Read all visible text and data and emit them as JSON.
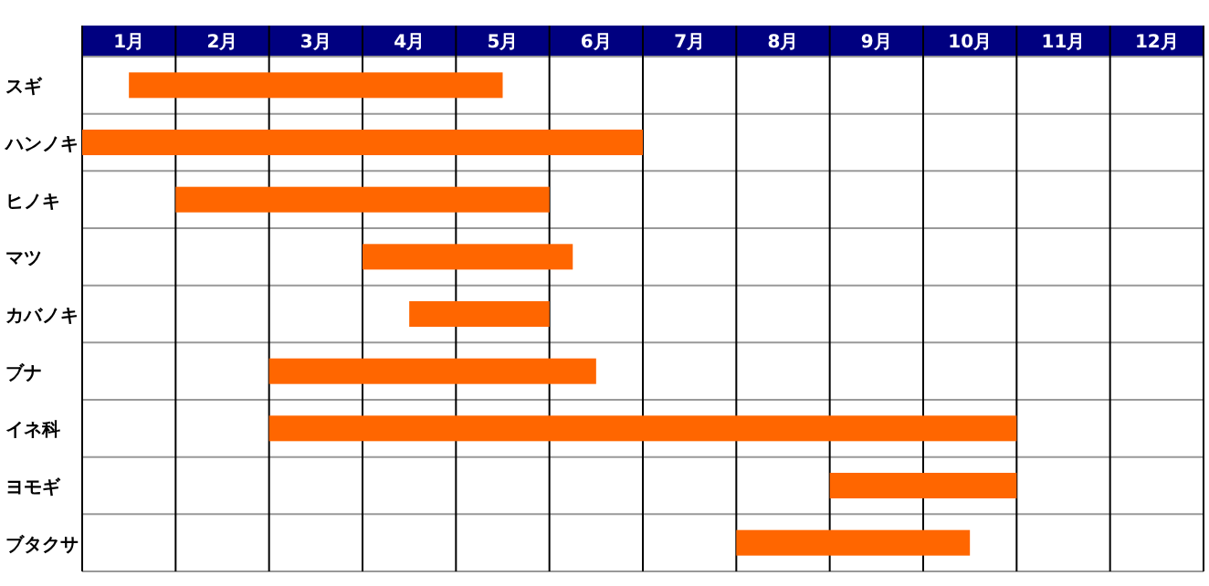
{
  "chart_data": {
    "type": "bar",
    "orientation": "horizontal",
    "categories": [
      "スギ",
      "ハンノキ",
      "ヒノキ",
      "マツ",
      "カバノキ",
      "ブナ",
      "イネ科",
      "ヨモギ",
      "ブタクサ"
    ],
    "base": [
      0.5,
      0,
      1,
      3,
      3.5,
      2,
      2,
      8,
      7
    ],
    "values": [
      4,
      6,
      4,
      2.25,
      1.5,
      3.5,
      8,
      2,
      2.5
    ],
    "color": "#ff6600",
    "xlim": [
      0,
      12
    ],
    "xticks": [
      {
        "value": 0,
        "label": null
      },
      {
        "value": 0.5,
        "label": "1月"
      },
      {
        "value": 1,
        "label": null
      },
      {
        "value": 1.5,
        "label": "2月"
      },
      {
        "value": 2,
        "label": null
      },
      {
        "value": 2.5,
        "label": "3月"
      },
      {
        "value": 3,
        "label": null
      },
      {
        "value": 3.5,
        "label": "4月"
      },
      {
        "value": 4,
        "label": null
      },
      {
        "value": 4.5,
        "label": "5月"
      },
      {
        "value": 5,
        "label": null
      },
      {
        "value": 5.5,
        "label": "6月"
      },
      {
        "value": 6,
        "label": null
      },
      {
        "value": 6.5,
        "label": "7月"
      },
      {
        "value": 7,
        "label": null
      },
      {
        "value": 7.5,
        "label": "8月"
      },
      {
        "value": 8,
        "label": null
      },
      {
        "value": 8.5,
        "label": "9月"
      },
      {
        "value": 9,
        "label": null
      },
      {
        "value": 9.5,
        "label": "10月"
      },
      {
        "value": 10,
        "label": null
      },
      {
        "value": 10.5,
        "label": "11月"
      },
      {
        "value": 11,
        "label": null
      },
      {
        "value": 11.5,
        "label": "12月"
      },
      {
        "value": 12,
        "label": null
      }
    ],
    "grid": true
  }
}
